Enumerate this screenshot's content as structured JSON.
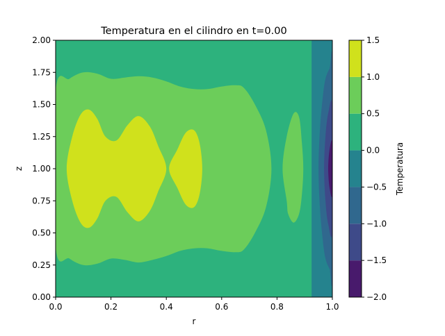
{
  "chart_data": {
    "type": "contourf",
    "title": "Temperatura en el cilindro en t=0.00",
    "xlabel": "r",
    "ylabel": "z",
    "xlim": [
      0.0,
      1.0
    ],
    "ylim": [
      0.0,
      2.0
    ],
    "x_ticks": [
      "0.0",
      "0.2",
      "0.4",
      "0.6",
      "0.8",
      "1.0"
    ],
    "y_ticks": [
      "0.00",
      "0.25",
      "0.50",
      "0.75",
      "1.00",
      "1.25",
      "1.50",
      "1.75",
      "2.00"
    ],
    "colorbar": {
      "label": "Temperatura",
      "levels": [
        -2.0,
        -1.5,
        -1.0,
        -0.5,
        0.0,
        0.5,
        1.0,
        1.5
      ],
      "tick_labels": [
        "−2.0",
        "−1.5",
        "−1.0",
        "−0.5",
        "0.0",
        "0.5",
        "1.0",
        "1.5"
      ],
      "colors": [
        "#481a6c",
        "#3e4a89",
        "#30688e",
        "#25838e",
        "#2db27d",
        "#6ccd5a",
        "#d0e11c"
      ]
    },
    "regions": [
      {
        "name": "band-0.5-1.0",
        "level": "0.5 to 1.0",
        "boundary": [
          [
            0.0,
            1.6
          ],
          [
            0.05,
            1.7
          ],
          [
            0.1,
            1.75
          ],
          [
            0.15,
            1.74
          ],
          [
            0.2,
            1.7
          ],
          [
            0.25,
            1.71
          ],
          [
            0.3,
            1.72
          ],
          [
            0.35,
            1.71
          ],
          [
            0.4,
            1.68
          ],
          [
            0.45,
            1.64
          ],
          [
            0.5,
            1.62
          ],
          [
            0.55,
            1.62
          ],
          [
            0.6,
            1.64
          ],
          [
            0.65,
            1.65
          ],
          [
            0.68,
            1.63
          ],
          [
            0.72,
            1.5
          ],
          [
            0.76,
            1.3
          ],
          [
            0.78,
            1.0
          ],
          [
            0.76,
            0.7
          ],
          [
            0.72,
            0.5
          ],
          [
            0.68,
            0.37
          ],
          [
            0.65,
            0.35
          ],
          [
            0.6,
            0.36
          ],
          [
            0.55,
            0.38
          ],
          [
            0.5,
            0.38
          ],
          [
            0.45,
            0.36
          ],
          [
            0.4,
            0.32
          ],
          [
            0.35,
            0.29
          ],
          [
            0.3,
            0.27
          ],
          [
            0.25,
            0.29
          ],
          [
            0.2,
            0.3
          ],
          [
            0.15,
            0.26
          ],
          [
            0.1,
            0.25
          ],
          [
            0.05,
            0.3
          ],
          [
            0.0,
            0.4
          ]
        ]
      },
      {
        "name": "band-0.5-1.0-right",
        "level": "0.5 to 1.0",
        "boundary": [
          [
            0.82,
            1.0
          ],
          [
            0.835,
            1.25
          ],
          [
            0.86,
            1.43
          ],
          [
            0.88,
            1.4
          ],
          [
            0.89,
            1.2
          ],
          [
            0.895,
            1.0
          ],
          [
            0.89,
            0.8
          ],
          [
            0.88,
            0.65
          ],
          [
            0.86,
            0.58
          ],
          [
            0.84,
            0.65
          ],
          [
            0.835,
            0.75
          ]
        ]
      },
      {
        "name": "band-1.0-1.5-left",
        "level": "1.0 to 1.5",
        "boundary": [
          [
            0.04,
            1.0
          ],
          [
            0.06,
            1.25
          ],
          [
            0.09,
            1.42
          ],
          [
            0.12,
            1.46
          ],
          [
            0.15,
            1.39
          ],
          [
            0.18,
            1.25
          ],
          [
            0.22,
            1.22
          ],
          [
            0.26,
            1.34
          ],
          [
            0.3,
            1.41
          ],
          [
            0.34,
            1.33
          ],
          [
            0.37,
            1.18
          ],
          [
            0.4,
            1.0
          ],
          [
            0.37,
            0.82
          ],
          [
            0.34,
            0.67
          ],
          [
            0.3,
            0.59
          ],
          [
            0.26,
            0.66
          ],
          [
            0.22,
            0.78
          ],
          [
            0.18,
            0.75
          ],
          [
            0.15,
            0.61
          ],
          [
            0.12,
            0.54
          ],
          [
            0.09,
            0.58
          ],
          [
            0.06,
            0.75
          ]
        ]
      },
      {
        "name": "band-1.0-1.5-mid",
        "level": "1.0 to 1.5",
        "boundary": [
          [
            0.41,
            1.0
          ],
          [
            0.44,
            1.15
          ],
          [
            0.47,
            1.28
          ],
          [
            0.5,
            1.3
          ],
          [
            0.52,
            1.2
          ],
          [
            0.53,
            1.0
          ],
          [
            0.52,
            0.8
          ],
          [
            0.5,
            0.7
          ],
          [
            0.47,
            0.72
          ],
          [
            0.44,
            0.85
          ]
        ]
      },
      {
        "name": "band--0.5-0.0",
        "level": "-0.5 to 0.0",
        "boundary": [
          [
            0.925,
            2.0
          ],
          [
            1.0,
            2.0
          ],
          [
            1.0,
            0.0
          ],
          [
            0.925,
            0.0
          ]
        ]
      },
      {
        "name": "band--1.0--0.5",
        "level": "-1.0 to -0.5",
        "boundary": [
          [
            0.965,
            1.55
          ],
          [
            0.975,
            1.7
          ],
          [
            0.99,
            1.78
          ],
          [
            1.0,
            1.8
          ],
          [
            1.0,
            0.2
          ],
          [
            0.99,
            0.22
          ],
          [
            0.975,
            0.3
          ],
          [
            0.965,
            0.45
          ],
          [
            0.955,
            0.7
          ],
          [
            0.95,
            1.0
          ],
          [
            0.955,
            1.3
          ]
        ]
      },
      {
        "name": "band--1.5--1.0",
        "level": "-1.5 to -1.0",
        "boundary": [
          [
            0.97,
            1.0
          ],
          [
            0.975,
            1.25
          ],
          [
            0.985,
            1.43
          ],
          [
            1.0,
            1.47
          ],
          [
            1.0,
            0.53
          ],
          [
            0.985,
            0.57
          ],
          [
            0.975,
            0.75
          ]
        ]
      },
      {
        "name": "band--2.0--1.5",
        "level": "-2.0 to -1.5",
        "boundary": [
          [
            0.985,
            1.0
          ],
          [
            0.99,
            1.15
          ],
          [
            1.0,
            1.2
          ],
          [
            1.0,
            0.8
          ],
          [
            0.99,
            0.85
          ]
        ]
      }
    ]
  }
}
